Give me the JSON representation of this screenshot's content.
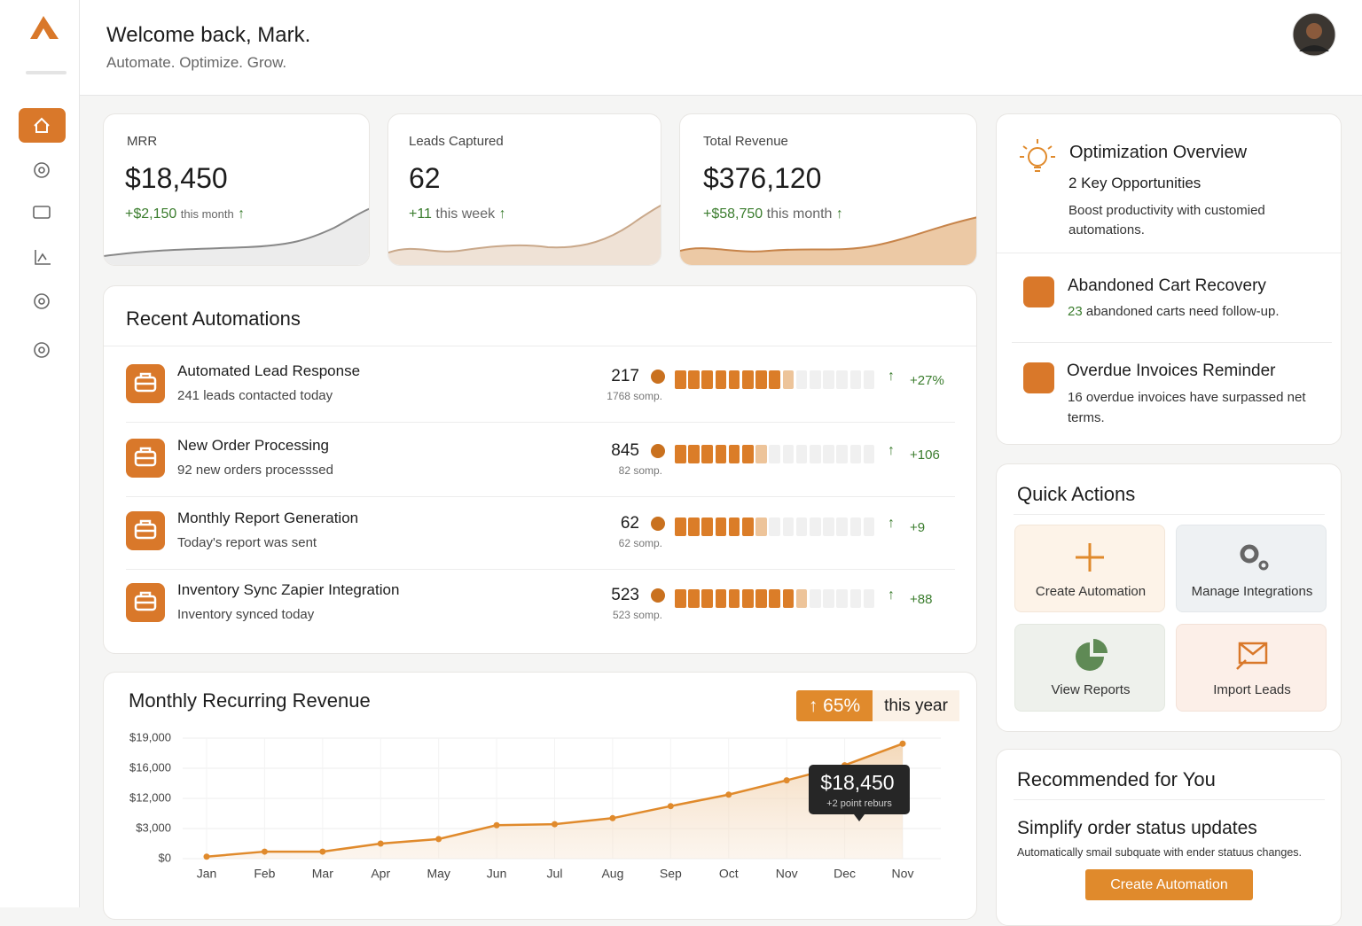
{
  "header": {
    "title": "Welcome back, Mark.",
    "subtitle": "Automate. Optimize. Grow."
  },
  "stats": [
    {
      "label": "MRR",
      "value": "$18,450",
      "change": "+$2,150",
      "period": "this month"
    },
    {
      "label": "Leads Captured",
      "value": "62",
      "change": "+11",
      "period": "this week"
    },
    {
      "label": "Total Revenue",
      "value": "$376,120",
      "change": "+$58,750",
      "period": "this month"
    }
  ],
  "automations": {
    "title": "Recent Automations",
    "items": [
      {
        "name": "Automated Lead Response",
        "detail": "241 leads contacted today",
        "count": 217,
        "sub": "1768 somp.",
        "progress": 8,
        "change": "+27%"
      },
      {
        "name": "New Order Processing",
        "detail": "92 new orders processsed",
        "count": 845,
        "sub": "82 somp.",
        "progress": 6,
        "change": "+106"
      },
      {
        "name": "Monthly Report Generation",
        "detail": "Today's report was sent",
        "count": 62,
        "sub": "62 somp.",
        "progress": 6,
        "change": "+9"
      },
      {
        "name": "Inventory Sync Zapier Integration",
        "detail": "Inventory synced today",
        "count": 523,
        "sub": "523 somp.",
        "progress": 9,
        "change": "+88"
      }
    ]
  },
  "optimization": {
    "title": "Optimization Overview",
    "subtitle": "2 Key Opportunities",
    "text": "Boost productivity with customied automations.",
    "items": [
      {
        "title": "Abandoned Cart Recovery",
        "highlight": "23",
        "text": "abandoned carts need follow-up."
      },
      {
        "title": "Overdue Invoices Reminder",
        "text": "16 overdue invoices have surpassed net terms."
      }
    ]
  },
  "quick_actions": {
    "title": "Quick Actions",
    "actions": [
      "Create Automation",
      "Manage Integrations",
      "View Reports",
      "Import Leads"
    ]
  },
  "recommended": {
    "title": "Recommended for You",
    "heading": "Simplify order status updates",
    "text": "Automatically smail subquate with ender statuus changes.",
    "button": "Create Automation"
  },
  "chart_data": {
    "type": "line",
    "title": "Monthly Recurring Revenue",
    "badge": "65%",
    "badge_text": "this year",
    "categories": [
      "Jan",
      "Feb",
      "Mar",
      "Apr",
      "May",
      "Jun",
      "Jul",
      "Aug",
      "Sep",
      "Oct",
      "Nov",
      "Dec",
      "Nov"
    ],
    "values": [
      200,
      700,
      700,
      1500,
      1950,
      4000,
      4300,
      6100,
      9700,
      12500,
      14400,
      16300,
      18450
    ],
    "color": "#e08a2c",
    "ylim": [
      0,
      19000
    ],
    "yticks": [
      {
        "value": 0,
        "label": "$0"
      },
      {
        "value": 3000,
        "label": "$3,000"
      },
      {
        "value": 12000,
        "label": "$12,000"
      },
      {
        "value": 16000,
        "label": "$16,000"
      },
      {
        "value": 19000,
        "label": "$19,000"
      }
    ],
    "grid": true,
    "tooltip": {
      "value": "$18,450",
      "note": "+2 point reburs"
    }
  }
}
